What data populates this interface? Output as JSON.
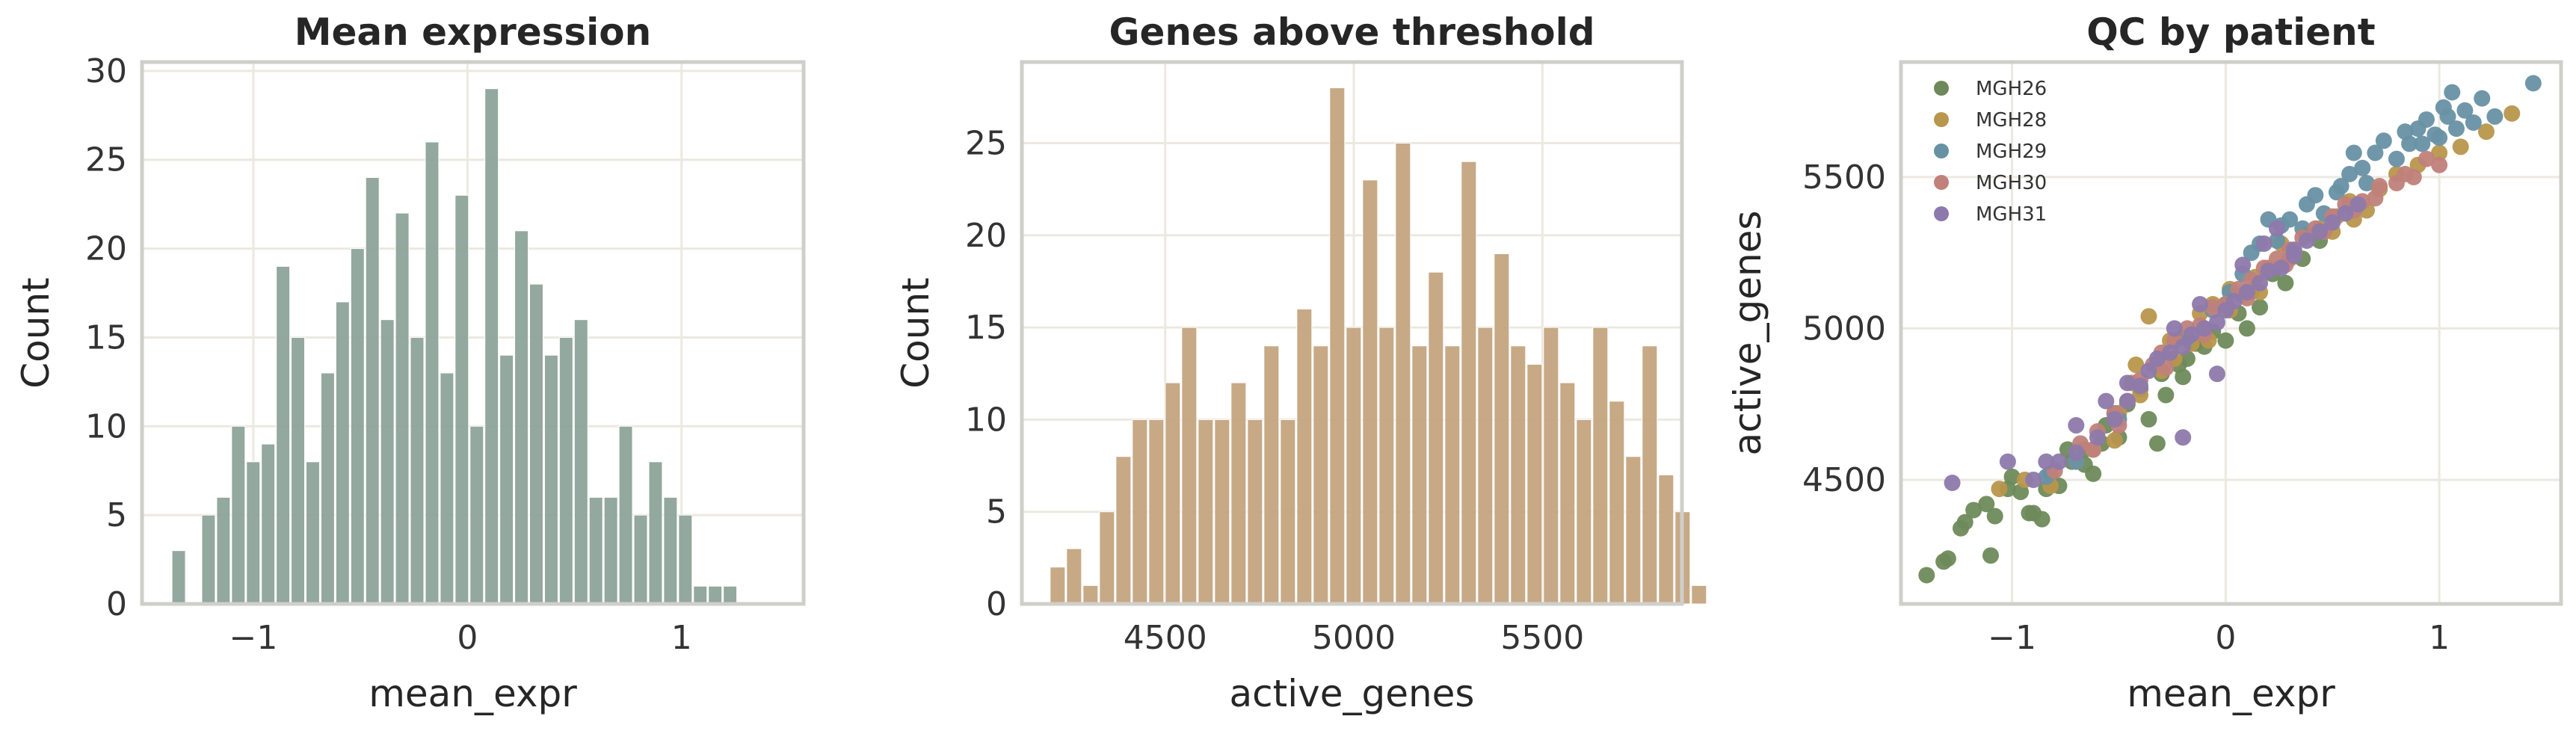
{
  "colors": {
    "hist1": "#8da399",
    "hist2": "#c4a47f",
    "grid": "#ebe9e0",
    "frame": "#cfcfca",
    "MGH26": "#6e8a5a",
    "MGH28": "#b8964c",
    "MGH29": "#6891a4",
    "MGH30": "#c0817a",
    "MGH31": "#8d79ab"
  },
  "chart_data": [
    {
      "type": "bar",
      "title": "Mean expression",
      "xlabel": "mean_expr",
      "ylabel": "Count",
      "xlim": [
        -1.52,
        1.57
      ],
      "ylim": [
        0,
        30.5
      ],
      "xticks": [
        -1,
        0,
        1
      ],
      "xtick_labels": [
        "−1",
        "0",
        "1"
      ],
      "yticks": [
        0,
        5,
        10,
        15,
        20,
        25,
        30
      ],
      "ytick_labels": [
        "0",
        "5",
        "10",
        "15",
        "20",
        "25",
        "30"
      ],
      "bin_start": -1.38,
      "bin_width": 0.0696,
      "values": [
        3,
        0,
        5,
        6,
        10,
        8,
        9,
        19,
        15,
        8,
        13,
        17,
        20,
        24,
        16,
        22,
        15,
        26,
        13,
        23,
        10,
        29,
        14,
        21,
        18,
        14,
        15,
        16,
        6,
        6,
        10,
        5,
        8,
        6,
        5,
        1,
        1,
        1
      ],
      "grid": true
    },
    {
      "type": "bar",
      "title": "Genes above threshold",
      "xlabel": "active_genes",
      "ylabel": "Count",
      "xlim": [
        4120,
        5870
      ],
      "ylim": [
        0,
        29.4
      ],
      "xticks": [
        4500,
        5000,
        5500
      ],
      "xtick_labels": [
        "4500",
        "5000",
        "5500"
      ],
      "yticks": [
        0,
        5,
        10,
        15,
        20,
        25
      ],
      "ytick_labels": [
        "0",
        "5",
        "10",
        "15",
        "20",
        "25"
      ],
      "bin_start": 4195,
      "bin_width": 43.6,
      "values": [
        2,
        3,
        1,
        5,
        8,
        10,
        10,
        12,
        15,
        10,
        10,
        12,
        10,
        14,
        10,
        16,
        14,
        28,
        15,
        23,
        15,
        25,
        14,
        18,
        14,
        24,
        15,
        19,
        14,
        13,
        15,
        12,
        10,
        15,
        11,
        8,
        14,
        7,
        5,
        1
      ],
      "grid": true
    },
    {
      "type": "scatter",
      "title": "QC by patient",
      "xlabel": "mean_expr",
      "ylabel": "active_genes",
      "xlim": [
        -1.52,
        1.57
      ],
      "ylim": [
        4090,
        5880
      ],
      "xticks": [
        -1,
        0,
        1
      ],
      "xtick_labels": [
        "−1",
        "0",
        "1"
      ],
      "yticks": [
        4500,
        5000,
        5500
      ],
      "ytick_labels": [
        "4500",
        "5000",
        "5500"
      ],
      "legend_position": "top-left",
      "grid": true,
      "series": [
        {
          "name": "MGH26",
          "points": [
            [
              -1.4,
              4185
            ],
            [
              -1.32,
              4230
            ],
            [
              -1.3,
              4240
            ],
            [
              -1.24,
              4340
            ],
            [
              -1.22,
              4360
            ],
            [
              -1.18,
              4400
            ],
            [
              -1.12,
              4420
            ],
            [
              -1.1,
              4250
            ],
            [
              -1.08,
              4380
            ],
            [
              -1.02,
              4470
            ],
            [
              -0.96,
              4460
            ],
            [
              -0.92,
              4390
            ],
            [
              -0.9,
              4390
            ],
            [
              -0.86,
              4370
            ],
            [
              -0.82,
              4520
            ],
            [
              -0.78,
              4480
            ],
            [
              -0.72,
              4560
            ],
            [
              -0.66,
              4600
            ],
            [
              -0.62,
              4520
            ],
            [
              -0.56,
              4680
            ],
            [
              -0.5,
              4640
            ],
            [
              -0.46,
              4750
            ],
            [
              -0.4,
              4800
            ],
            [
              -0.36,
              4700
            ],
            [
              -0.32,
              4620
            ],
            [
              -0.28,
              4780
            ],
            [
              -0.22,
              4880
            ],
            [
              -0.2,
              4840
            ],
            [
              -0.14,
              4950
            ],
            [
              -0.1,
              4940
            ],
            [
              -0.06,
              4990
            ],
            [
              0.0,
              4960
            ],
            [
              0.0,
              5080
            ],
            [
              0.06,
              5050
            ],
            [
              0.12,
              5120
            ],
            [
              0.16,
              5070
            ],
            [
              0.22,
              5180
            ],
            [
              0.28,
              5150
            ],
            [
              0.36,
              5230
            ],
            [
              0.44,
              5290
            ],
            [
              -1.0,
              4510
            ],
            [
              -0.74,
              4600
            ],
            [
              -0.52,
              4720
            ],
            [
              -0.18,
              4900
            ],
            [
              0.1,
              5000
            ],
            [
              -0.58,
              4620
            ],
            [
              -0.84,
              4470
            ],
            [
              -0.3,
              4850
            ],
            [
              -0.66,
              4550
            ],
            [
              -0.1,
              5000
            ]
          ]
        },
        {
          "name": "MGH28",
          "points": [
            [
              -1.06,
              4470
            ],
            [
              -0.94,
              4500
            ],
            [
              -0.82,
              4480
            ],
            [
              -0.7,
              4560
            ],
            [
              -0.62,
              4600
            ],
            [
              -0.5,
              4720
            ],
            [
              -0.44,
              4820
            ],
            [
              -0.42,
              4880
            ],
            [
              -0.36,
              5040
            ],
            [
              -0.3,
              4860
            ],
            [
              -0.26,
              4960
            ],
            [
              -0.2,
              4970
            ],
            [
              -0.16,
              4950
            ],
            [
              -0.12,
              5050
            ],
            [
              -0.06,
              5080
            ],
            [
              0.02,
              5130
            ],
            [
              0.08,
              5110
            ],
            [
              0.14,
              5170
            ],
            [
              0.2,
              5200
            ],
            [
              0.26,
              5280
            ],
            [
              0.32,
              5250
            ],
            [
              0.38,
              5310
            ],
            [
              0.44,
              5330
            ],
            [
              0.52,
              5370
            ],
            [
              0.58,
              5420
            ],
            [
              0.66,
              5390
            ],
            [
              0.72,
              5460
            ],
            [
              0.8,
              5510
            ],
            [
              0.9,
              5540
            ],
            [
              1.0,
              5580
            ],
            [
              1.1,
              5600
            ],
            [
              1.22,
              5650
            ],
            [
              1.34,
              5710
            ],
            [
              -0.52,
              4630
            ],
            [
              -0.08,
              4960
            ],
            [
              0.3,
              5230
            ],
            [
              0.6,
              5360
            ],
            [
              -0.24,
              4900
            ],
            [
              0.16,
              5120
            ],
            [
              0.5,
              5320
            ],
            [
              -0.4,
              4780
            ],
            [
              0.02,
              5060
            ]
          ]
        },
        {
          "name": "MGH29",
          "points": [
            [
              -0.18,
              4970
            ],
            [
              -0.06,
              5060
            ],
            [
              0.02,
              5120
            ],
            [
              0.08,
              5180
            ],
            [
              0.12,
              5250
            ],
            [
              0.2,
              5360
            ],
            [
              0.24,
              5290
            ],
            [
              0.3,
              5360
            ],
            [
              0.36,
              5330
            ],
            [
              0.42,
              5440
            ],
            [
              0.46,
              5380
            ],
            [
              0.52,
              5450
            ],
            [
              0.58,
              5510
            ],
            [
              0.6,
              5580
            ],
            [
              0.66,
              5480
            ],
            [
              0.7,
              5580
            ],
            [
              0.74,
              5620
            ],
            [
              0.8,
              5560
            ],
            [
              0.86,
              5610
            ],
            [
              0.9,
              5660
            ],
            [
              0.94,
              5690
            ],
            [
              1.0,
              5630
            ],
            [
              1.04,
              5700
            ],
            [
              1.08,
              5660
            ],
            [
              1.12,
              5720
            ],
            [
              1.16,
              5680
            ],
            [
              1.2,
              5760
            ],
            [
              1.26,
              5700
            ],
            [
              1.06,
              5780
            ],
            [
              0.98,
              5640
            ],
            [
              -0.7,
              4560
            ],
            [
              -0.84,
              4510
            ],
            [
              -0.5,
              4700
            ],
            [
              0.38,
              5410
            ],
            [
              0.64,
              5530
            ],
            [
              0.84,
              5650
            ],
            [
              1.44,
              5810
            ],
            [
              1.02,
              5730
            ],
            [
              0.54,
              5470
            ],
            [
              0.26,
              5340
            ],
            [
              0.16,
              5280
            ],
            [
              0.92,
              5610
            ]
          ]
        },
        {
          "name": "MGH30",
          "points": [
            [
              -0.8,
              4530
            ],
            [
              -0.68,
              4620
            ],
            [
              -0.6,
              4660
            ],
            [
              -0.52,
              4720
            ],
            [
              -0.46,
              4760
            ],
            [
              -0.4,
              4830
            ],
            [
              -0.34,
              4880
            ],
            [
              -0.3,
              4920
            ],
            [
              -0.24,
              4960
            ],
            [
              -0.18,
              5000
            ],
            [
              -0.12,
              5010
            ],
            [
              -0.06,
              5070
            ],
            [
              0.0,
              5080
            ],
            [
              0.06,
              5130
            ],
            [
              0.12,
              5160
            ],
            [
              0.18,
              5200
            ],
            [
              0.24,
              5230
            ],
            [
              0.3,
              5260
            ],
            [
              0.36,
              5300
            ],
            [
              0.42,
              5330
            ],
            [
              0.5,
              5370
            ],
            [
              0.56,
              5410
            ],
            [
              0.64,
              5420
            ],
            [
              0.72,
              5470
            ],
            [
              0.8,
              5480
            ],
            [
              0.88,
              5500
            ],
            [
              0.94,
              5560
            ],
            [
              1.0,
              5540
            ],
            [
              -0.62,
              4600
            ],
            [
              -0.28,
              4870
            ],
            [
              0.1,
              5100
            ],
            [
              0.46,
              5320
            ],
            [
              0.7,
              5430
            ],
            [
              0.84,
              5510
            ],
            [
              -0.1,
              4980
            ],
            [
              0.28,
              5210
            ],
            [
              0.6,
              5390
            ],
            [
              -0.5,
              4680
            ]
          ]
        },
        {
          "name": "MGH31",
          "points": [
            [
              -1.28,
              4490
            ],
            [
              -1.02,
              4560
            ],
            [
              -0.9,
              4500
            ],
            [
              -0.78,
              4560
            ],
            [
              -0.7,
              4590
            ],
            [
              -0.6,
              4640
            ],
            [
              -0.52,
              4700
            ],
            [
              -0.46,
              4760
            ],
            [
              -0.4,
              4810
            ],
            [
              -0.36,
              4860
            ],
            [
              -0.32,
              4900
            ],
            [
              -0.26,
              4920
            ],
            [
              -0.2,
              4940
            ],
            [
              -0.16,
              4980
            ],
            [
              -0.1,
              5000
            ],
            [
              -0.04,
              5020
            ],
            [
              0.0,
              5060
            ],
            [
              0.04,
              5090
            ],
            [
              0.1,
              5120
            ],
            [
              0.16,
              5150
            ],
            [
              0.2,
              5190
            ],
            [
              0.26,
              5200
            ],
            [
              0.32,
              5240
            ],
            [
              0.38,
              5290
            ],
            [
              0.44,
              5320
            ],
            [
              0.5,
              5350
            ],
            [
              0.56,
              5380
            ],
            [
              0.62,
              5410
            ],
            [
              0.24,
              5330
            ],
            [
              0.18,
              5280
            ],
            [
              -0.24,
              5000
            ],
            [
              -0.46,
              4820
            ],
            [
              -0.12,
              5080
            ],
            [
              -0.04,
              4850
            ],
            [
              -0.2,
              4640
            ],
            [
              -0.56,
              4760
            ],
            [
              0.08,
              5210
            ],
            [
              0.32,
              5260
            ],
            [
              -0.7,
              4680
            ],
            [
              -0.84,
              4560
            ]
          ]
        }
      ]
    }
  ]
}
